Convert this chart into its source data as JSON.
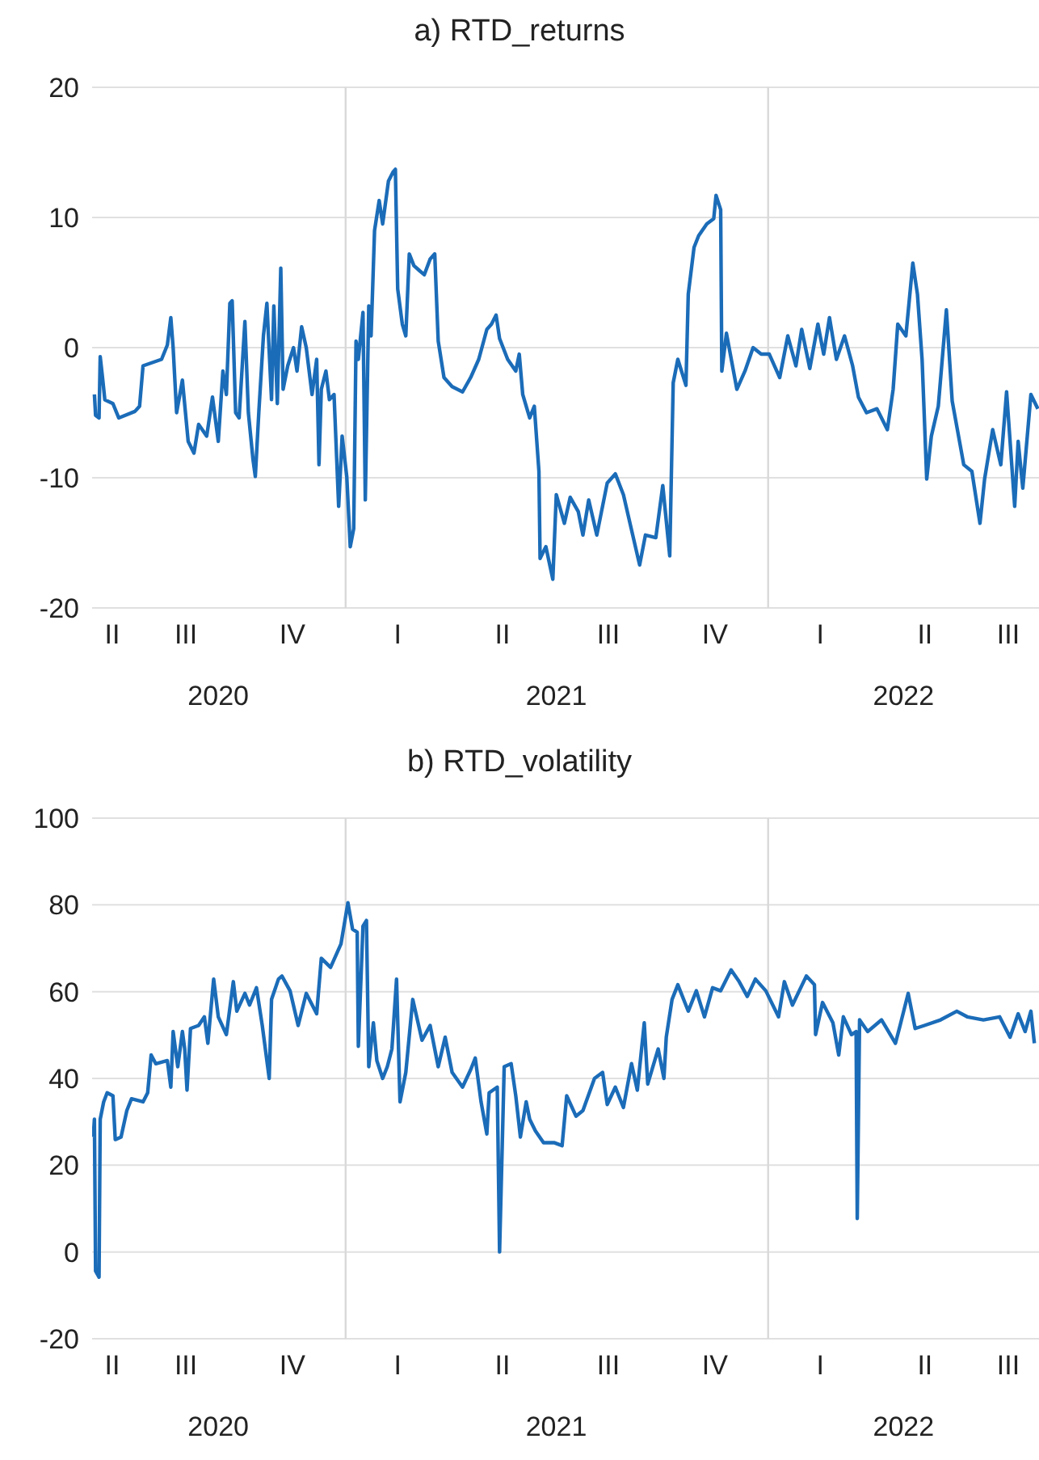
{
  "chart_data": [
    {
      "type": "line",
      "title": "a) RTD_returns",
      "color": "#1b6cb8",
      "marker": "none",
      "line_style": "solid",
      "grid": "y",
      "x": [
        "2020-05-29",
        "2020-05-30",
        "2020-06-02",
        "2020-06-03",
        "2020-06-05",
        "2020-06-07",
        "2020-06-14",
        "2020-06-19",
        "2020-07-03",
        "2020-07-07",
        "2020-07-10",
        "2020-07-26",
        "2020-07-31",
        "2020-08-03",
        "2020-08-05",
        "2020-08-08",
        "2020-08-13",
        "2020-08-18",
        "2020-08-23",
        "2020-08-27",
        "2020-09-03",
        "2020-09-08",
        "2020-09-13",
        "2020-09-17",
        "2020-09-20",
        "2020-09-23",
        "2020-09-25",
        "2020-09-28",
        "2020-10-01",
        "2020-10-06",
        "2020-10-09",
        "2020-10-13",
        "2020-10-15",
        "2020-10-18",
        "2020-10-22",
        "2020-10-25",
        "2020-10-29",
        "2020-10-31",
        "2020-11-03",
        "2020-11-06",
        "2020-11-08",
        "2020-11-12",
        "2020-11-17",
        "2020-11-20",
        "2020-11-24",
        "2020-11-28",
        "2020-12-03",
        "2020-12-07",
        "2020-12-09",
        "2020-12-11",
        "2020-12-15",
        "2020-12-18",
        "2020-12-22",
        "2020-12-26",
        "2020-12-29",
        "2021-01-02",
        "2021-01-05",
        "2021-01-08",
        "2021-01-10",
        "2021-01-12",
        "2021-01-16",
        "2021-01-18",
        "2021-01-21",
        "2021-01-23",
        "2021-01-26",
        "2021-01-30",
        "2021-02-02",
        "2021-02-07",
        "2021-02-11",
        "2021-02-13",
        "2021-02-15",
        "2021-02-19",
        "2021-02-22",
        "2021-02-25",
        "2021-03-01",
        "2021-03-06",
        "2021-03-10",
        "2021-03-15",
        "2021-03-19",
        "2021-03-22",
        "2021-03-27",
        "2021-04-03",
        "2021-04-12",
        "2021-04-19",
        "2021-04-26",
        "2021-05-03",
        "2021-05-07",
        "2021-05-11",
        "2021-05-14",
        "2021-05-21",
        "2021-05-28",
        "2021-05-31",
        "2021-06-03",
        "2021-06-09",
        "2021-06-13",
        "2021-06-17",
        "2021-06-18",
        "2021-06-23",
        "2021-06-29",
        "2021-07-02",
        "2021-07-09",
        "2021-07-14",
        "2021-07-21",
        "2021-07-25",
        "2021-07-30",
        "2021-08-06",
        "2021-08-15",
        "2021-08-22",
        "2021-08-29",
        "2021-09-05",
        "2021-09-12",
        "2021-09-17",
        "2021-09-26",
        "2021-10-02",
        "2021-10-08",
        "2021-10-11",
        "2021-10-15",
        "2021-10-22",
        "2021-10-24",
        "2021-10-29",
        "2021-11-02",
        "2021-11-09",
        "2021-11-15",
        "2021-11-17",
        "2021-11-21",
        "2021-11-22",
        "2021-11-26",
        "2021-12-05",
        "2021-12-12",
        "2021-12-19",
        "2021-12-26",
        "2022-01-02",
        "2022-01-11",
        "2022-01-18",
        "2022-01-25",
        "2022-01-30",
        "2022-02-06",
        "2022-02-13",
        "2022-02-18",
        "2022-02-23",
        "2022-03-01",
        "2022-03-08",
        "2022-03-15",
        "2022-03-20",
        "2022-03-27",
        "2022-04-05",
        "2022-04-14",
        "2022-04-19",
        "2022-04-23",
        "2022-04-30",
        "2022-05-06",
        "2022-05-10",
        "2022-05-14",
        "2022-05-18",
        "2022-05-22",
        "2022-05-28",
        "2022-06-04",
        "2022-06-09",
        "2022-06-19",
        "2022-06-26",
        "2022-07-03",
        "2022-07-07",
        "2022-07-14",
        "2022-07-21",
        "2022-07-26",
        "2022-08-02",
        "2022-08-05",
        "2022-08-09",
        "2022-08-16",
        "2022-08-22"
      ],
      "values": [
        -3.6,
        -5.2,
        -5.4,
        -0.7,
        -2.3,
        -4.0,
        -4.3,
        -5.4,
        -4.9,
        -4.5,
        -1.4,
        -0.9,
        0.2,
        2.3,
        0,
        -5.0,
        -2.5,
        -7.2,
        -8.1,
        -5.9,
        -6.8,
        -3.8,
        -7.2,
        -1.8,
        -3.6,
        3.4,
        3.6,
        -5.0,
        -5.4,
        2.0,
        -5.0,
        -8.6,
        -9.9,
        -5.0,
        0.9,
        3.4,
        -4.0,
        3.2,
        -4.3,
        6.1,
        -3.2,
        -1.4,
        0,
        -1.8,
        1.6,
        0,
        -3.6,
        -0.9,
        -9.0,
        -3.2,
        -1.8,
        -4.0,
        -3.6,
        -12.2,
        -6.8,
        -9.9,
        -15.3,
        -13.9,
        0.5,
        -0.9,
        2.7,
        -11.7,
        3.2,
        0.9,
        9.0,
        11.3,
        9.5,
        12.8,
        13.5,
        13.7,
        4.5,
        1.8,
        0.9,
        7.2,
        6.3,
        5.9,
        5.6,
        6.8,
        7.2,
        0.5,
        -2.3,
        -3.0,
        -3.4,
        -2.3,
        -0.9,
        1.4,
        1.8,
        2.5,
        0.7,
        -0.9,
        -1.8,
        -0.5,
        -3.6,
        -5.4,
        -4.5,
        -9.5,
        -16.2,
        -15.3,
        -17.8,
        -11.3,
        -13.5,
        -11.5,
        -12.6,
        -14.4,
        -11.7,
        -14.4,
        -10.4,
        -9.7,
        -11.3,
        -14.0,
        -16.7,
        -14.4,
        -14.6,
        -10.6,
        -16.0,
        -2.7,
        -0.9,
        -2.9,
        4.1,
        7.7,
        8.6,
        9.5,
        9.9,
        11.7,
        10.6,
        -1.8,
        1.1,
        -3.2,
        -1.8,
        0,
        -0.5,
        -0.5,
        -2.3,
        0.9,
        -1.4,
        1.4,
        -1.6,
        1.8,
        -0.5,
        2.3,
        -0.9,
        0.9,
        -1.4,
        -3.8,
        -5.0,
        -4.7,
        -6.3,
        -3.2,
        1.8,
        0.9,
        6.5,
        4.1,
        -0.9,
        -10.1,
        -6.8,
        -4.5,
        2.9,
        -4.1,
        -9.0,
        -9.5,
        -13.5,
        -10.1,
        -6.3,
        -9.0,
        -3.4,
        -12.2,
        -7.2,
        -10.8,
        -3.6,
        -4.7
      ],
      "xlim": [
        "2020-05-27",
        "2022-08-23"
      ],
      "annotations": [
        "II",
        "III",
        "IV",
        "I",
        "II",
        "III",
        "IV",
        "I",
        "II",
        "III"
      ],
      "xticks": [
        {
          "value": "2020-09-13",
          "label": "2020"
        },
        {
          "value": "2021-07-02",
          "label": "2021"
        },
        {
          "value": "2022-04-28",
          "label": "2022"
        }
      ],
      "ylim": [
        -20,
        20
      ],
      "yticks": [
        -20,
        -10,
        0,
        10,
        20
      ],
      "ref_lines": [
        {
          "axis": "x",
          "value": "2021-01-01",
          "color": "#d9d9d9"
        },
        {
          "axis": "x",
          "value": "2022-01-01",
          "color": "#d9d9d9"
        }
      ]
    },
    {
      "type": "line",
      "title": "b) RTD_volatility",
      "color": "#1b6cb8",
      "marker": "none",
      "line_style": "solid",
      "grid": "y",
      "x": [
        "2020-05-28",
        "2020-05-29",
        "2020-05-30",
        "2020-06-02",
        "2020-06-03",
        "2020-06-06",
        "2020-06-09",
        "2020-06-14",
        "2020-06-16",
        "2020-06-21",
        "2020-06-26",
        "2020-06-30",
        "2020-07-10",
        "2020-07-14",
        "2020-07-17",
        "2020-07-21",
        "2020-07-31",
        "2020-08-03",
        "2020-08-05",
        "2020-08-09",
        "2020-08-13",
        "2020-08-15",
        "2020-08-17",
        "2020-08-20",
        "2020-08-27",
        "2020-09-01",
        "2020-09-04",
        "2020-09-09",
        "2020-09-13",
        "2020-09-20",
        "2020-09-26",
        "2020-09-29",
        "2020-10-06",
        "2020-10-10",
        "2020-10-16",
        "2020-10-21",
        "2020-10-27",
        "2020-10-29",
        "2020-11-04",
        "2020-11-07",
        "2020-11-14",
        "2020-11-21",
        "2020-11-28",
        "2020-12-07",
        "2020-12-11",
        "2020-12-19",
        "2020-12-28",
        "2021-01-03",
        "2021-01-07",
        "2021-01-11",
        "2021-01-12",
        "2021-01-16",
        "2021-01-19",
        "2021-01-21",
        "2021-01-25",
        "2021-01-28",
        "2021-02-02",
        "2021-02-06",
        "2021-02-10",
        "2021-02-14",
        "2021-02-17",
        "2021-02-22",
        "2021-02-28",
        "2021-03-08",
        "2021-03-15",
        "2021-03-22",
        "2021-03-28",
        "2021-04-03",
        "2021-04-12",
        "2021-04-19",
        "2021-04-23",
        "2021-04-28",
        "2021-05-03",
        "2021-05-05",
        "2021-05-12",
        "2021-05-14",
        "2021-05-18",
        "2021-05-24",
        "2021-05-28",
        "2021-06-01",
        "2021-06-06",
        "2021-06-09",
        "2021-06-14",
        "2021-06-21",
        "2021-06-30",
        "2021-07-07",
        "2021-07-11",
        "2021-07-19",
        "2021-07-25",
        "2021-08-04",
        "2021-08-11",
        "2021-08-15",
        "2021-08-22",
        "2021-08-29",
        "2021-09-05",
        "2021-09-10",
        "2021-09-16",
        "2021-09-19",
        "2021-09-28",
        "2021-10-03",
        "2021-10-05",
        "2021-10-10",
        "2021-10-15",
        "2021-10-24",
        "2021-10-31",
        "2021-11-07",
        "2021-11-14",
        "2021-11-21",
        "2021-11-30",
        "2021-12-07",
        "2021-12-14",
        "2021-12-21",
        "2021-12-30",
        "2022-01-10",
        "2022-01-15",
        "2022-01-22",
        "2022-02-03",
        "2022-02-10",
        "2022-02-11",
        "2022-02-17",
        "2022-02-26",
        "2022-03-03",
        "2022-03-07",
        "2022-03-14",
        "2022-03-18",
        "2022-03-19",
        "2022-03-21",
        "2022-03-28",
        "2022-04-09",
        "2022-04-21",
        "2022-04-25",
        "2022-05-02",
        "2022-05-08",
        "2022-05-16",
        "2022-05-30",
        "2022-06-13",
        "2022-06-22",
        "2022-07-06",
        "2022-07-20",
        "2022-07-29",
        "2022-08-05",
        "2022-08-11",
        "2022-08-16",
        "2022-08-19"
      ],
      "values": [
        26.5,
        30.6,
        -4.4,
        -5.8,
        30.6,
        34.6,
        36.7,
        36.0,
        25.9,
        26.5,
        32.6,
        35.3,
        34.6,
        36.7,
        45.4,
        43.4,
        44.1,
        38.0,
        50.8,
        42.7,
        50.8,
        46.8,
        37.3,
        51.5,
        52.2,
        54.2,
        48.1,
        62.9,
        54.2,
        50.1,
        62.3,
        55.5,
        59.6,
        56.9,
        60.9,
        52.2,
        40.0,
        58.2,
        62.9,
        63.6,
        60.2,
        52.2,
        59.6,
        54.9,
        67.7,
        65.6,
        71.0,
        80.5,
        74.4,
        73.7,
        47.4,
        75.1,
        76.4,
        42.7,
        52.8,
        44.1,
        40.0,
        42.7,
        46.8,
        62.9,
        34.6,
        41.4,
        58.2,
        48.8,
        52.2,
        42.7,
        49.5,
        41.4,
        38.0,
        42.0,
        44.7,
        34.6,
        27.2,
        36.7,
        38.0,
        0,
        42.7,
        43.4,
        36.0,
        26.5,
        34.6,
        30.6,
        27.9,
        25.2,
        25.2,
        24.5,
        36.0,
        31.3,
        32.6,
        40.0,
        41.4,
        34.0,
        38.0,
        33.3,
        43.4,
        37.3,
        52.8,
        38.7,
        46.8,
        40.0,
        49.5,
        58.2,
        61.6,
        55.5,
        60.2,
        54.2,
        60.9,
        60.2,
        65.0,
        62.3,
        58.9,
        62.9,
        60.2,
        54.2,
        62.3,
        56.9,
        63.6,
        61.6,
        50.1,
        57.5,
        52.8,
        45.4,
        54.2,
        50.1,
        50.8,
        7.7,
        53.5,
        50.8,
        53.5,
        48.1,
        52.2,
        59.6,
        51.5,
        52.2,
        53.5,
        55.5,
        54.2,
        53.5,
        54.2,
        49.5,
        54.9,
        50.8,
        55.5,
        48.1
      ],
      "xlim": [
        "2020-05-27",
        "2022-08-23"
      ],
      "annotations": [
        "II",
        "III",
        "IV",
        "I",
        "II",
        "III",
        "IV",
        "I",
        "II",
        "III"
      ],
      "xticks": [
        {
          "value": "2020-09-13",
          "label": "2020"
        },
        {
          "value": "2021-07-02",
          "label": "2021"
        },
        {
          "value": "2022-04-28",
          "label": "2022"
        }
      ],
      "ylim": [
        -20,
        100
      ],
      "yticks": [
        -20,
        0,
        20,
        40,
        60,
        80,
        100
      ],
      "ref_lines": [
        {
          "axis": "x",
          "value": "2021-01-01",
          "color": "#d9d9d9"
        },
        {
          "axis": "x",
          "value": "2022-01-01",
          "color": "#d9d9d9"
        }
      ]
    }
  ]
}
